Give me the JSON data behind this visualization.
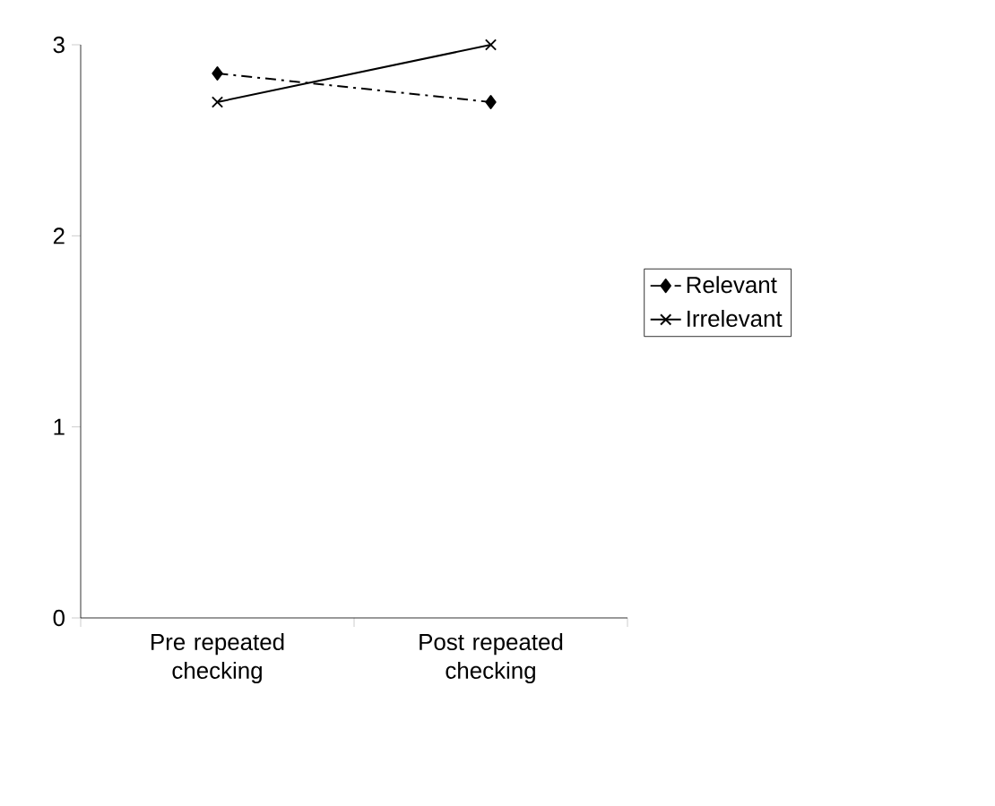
{
  "chart_data": {
    "type": "line",
    "categories": [
      "Pre repeated checking",
      "Post repeated checking"
    ],
    "series": [
      {
        "name": "Relevant",
        "color": "#000000",
        "values": [
          2.85,
          2.7
        ],
        "marker": "diamond",
        "line_style": "dashdot"
      },
      {
        "name": "Irrelevant",
        "color": "#000000",
        "values": [
          2.7,
          3.0
        ],
        "marker": "cross",
        "line_style": "solid"
      }
    ],
    "ylim": [
      0,
      3
    ],
    "yticks": [
      0,
      1,
      2,
      3
    ],
    "grid": false,
    "legend": "right"
  }
}
